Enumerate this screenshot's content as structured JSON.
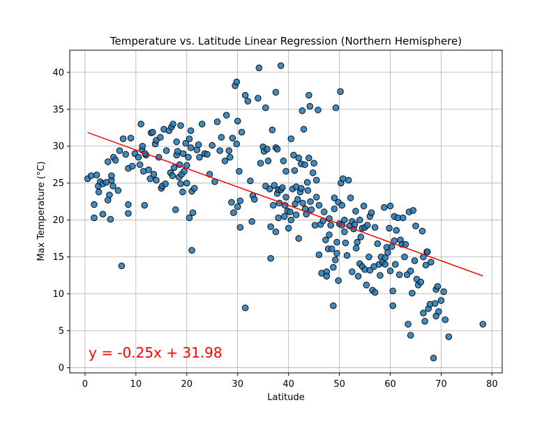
{
  "chart_data": {
    "type": "scatter",
    "title": "Temperature vs. Latitude Linear Regression (Northern Hemisphere)",
    "xlabel": "Latitude",
    "ylabel": "Max Temperature (°C)",
    "xlim": [
      -3,
      82
    ],
    "ylim": [
      -0.7,
      43
    ],
    "xticks": [
      0,
      10,
      20,
      30,
      40,
      50,
      60,
      70,
      80
    ],
    "yticks": [
      0,
      5,
      10,
      15,
      20,
      25,
      30,
      35,
      40
    ],
    "grid": true,
    "regression": {
      "slope": -0.25,
      "intercept": 31.98,
      "x_range": [
        0.5,
        78.2
      ],
      "equation": "y = -0.25x + 31.98",
      "color": "#ff0000"
    },
    "point_color": "#1f77b4",
    "points": [
      [
        0.5,
        25.6
      ],
      [
        1.2,
        26.0
      ],
      [
        1.8,
        22.1
      ],
      [
        1.8,
        20.3
      ],
      [
        2.3,
        26.1
      ],
      [
        2.6,
        24.6
      ],
      [
        2.7,
        23.8
      ],
      [
        3.0,
        25.2
      ],
      [
        3.5,
        20.8
      ],
      [
        3.5,
        24.9
      ],
      [
        4.2,
        25.1
      ],
      [
        4.5,
        22.7
      ],
      [
        4.5,
        27.9
      ],
      [
        4.8,
        23.4
      ],
      [
        5.0,
        20.1
      ],
      [
        5.2,
        25.4
      ],
      [
        5.2,
        26.0
      ],
      [
        5.5,
        24.6
      ],
      [
        5.6,
        28.5
      ],
      [
        6.0,
        28.1
      ],
      [
        6.5,
        24.0
      ],
      [
        6.8,
        29.4
      ],
      [
        7.2,
        13.8
      ],
      [
        7.5,
        31.0
      ],
      [
        8.0,
        28.9
      ],
      [
        8.5,
        22.1
      ],
      [
        8.5,
        20.9
      ],
      [
        8.5,
        27.0
      ],
      [
        9.0,
        31.1
      ],
      [
        9.3,
        27.3
      ],
      [
        9.8,
        29.0
      ],
      [
        10.5,
        28.5
      ],
      [
        10.8,
        27.5
      ],
      [
        11.0,
        33.0
      ],
      [
        11.2,
        29.5
      ],
      [
        11.3,
        30.0
      ],
      [
        11.5,
        26.6
      ],
      [
        11.7,
        22.0
      ],
      [
        12.0,
        28.8
      ],
      [
        12.5,
        26.8
      ],
      [
        12.8,
        25.6
      ],
      [
        13.0,
        31.8
      ],
      [
        13.3,
        31.9
      ],
      [
        13.5,
        26.2
      ],
      [
        13.8,
        30.3
      ],
      [
        14.0,
        30.8
      ],
      [
        14.0,
        25.4
      ],
      [
        14.5,
        28.5
      ],
      [
        14.8,
        31.2
      ],
      [
        15.0,
        24.3
      ],
      [
        15.2,
        24.6
      ],
      [
        15.5,
        32.3
      ],
      [
        15.8,
        24.9
      ],
      [
        16.0,
        29.4
      ],
      [
        16.5,
        32.1
      ],
      [
        16.8,
        26.4
      ],
      [
        17.0,
        32.6
      ],
      [
        17.2,
        26.0
      ],
      [
        17.3,
        33.0
      ],
      [
        17.5,
        27.1
      ],
      [
        17.8,
        21.4
      ],
      [
        18.0,
        28.8
      ],
      [
        18.0,
        30.6
      ],
      [
        18.2,
        29.3
      ],
      [
        18.5,
        25.8
      ],
      [
        18.6,
        27.5
      ],
      [
        18.8,
        32.8
      ],
      [
        18.8,
        24.9
      ],
      [
        19.0,
        26.2
      ],
      [
        19.2,
        23.8
      ],
      [
        19.3,
        29.0
      ],
      [
        19.5,
        26.6
      ],
      [
        19.8,
        30.4
      ],
      [
        20.0,
        27.4
      ],
      [
        20.0,
        25.0
      ],
      [
        20.3,
        28.5
      ],
      [
        20.5,
        31.0
      ],
      [
        20.5,
        20.3
      ],
      [
        20.8,
        32.1
      ],
      [
        20.8,
        29.8
      ],
      [
        21.0,
        23.9
      ],
      [
        21.0,
        15.9
      ],
      [
        21.2,
        21.0
      ],
      [
        21.5,
        24.3
      ],
      [
        22.0,
        29.5
      ],
      [
        22.3,
        30.2
      ],
      [
        22.5,
        28.5
      ],
      [
        23.0,
        33.0
      ],
      [
        23.5,
        29.0
      ],
      [
        24.0,
        28.9
      ],
      [
        24.5,
        26.2
      ],
      [
        25.0,
        30.1
      ],
      [
        25.5,
        25.2
      ],
      [
        26.0,
        33.3
      ],
      [
        26.5,
        29.4
      ],
      [
        26.8,
        31.2
      ],
      [
        27.5,
        28.0
      ],
      [
        27.8,
        34.2
      ],
      [
        28.3,
        29.4
      ],
      [
        28.5,
        28.5
      ],
      [
        28.8,
        22.4
      ],
      [
        29.0,
        31.1
      ],
      [
        29.2,
        21.0
      ],
      [
        29.5,
        38.2
      ],
      [
        29.8,
        38.7
      ],
      [
        29.8,
        30.3
      ],
      [
        30.0,
        33.4
      ],
      [
        30.0,
        21.8
      ],
      [
        30.3,
        26.6
      ],
      [
        30.5,
        22.6
      ],
      [
        30.5,
        19.0
      ],
      [
        30.8,
        31.9
      ],
      [
        31.5,
        36.9
      ],
      [
        31.5,
        8.1
      ],
      [
        32.0,
        36.1
      ],
      [
        32.5,
        25.3
      ],
      [
        32.8,
        19.8
      ],
      [
        33.0,
        23.3
      ],
      [
        33.3,
        22.8
      ],
      [
        34.0,
        36.5
      ],
      [
        34.2,
        40.6
      ],
      [
        34.5,
        27.7
      ],
      [
        35.0,
        29.9
      ],
      [
        35.2,
        29.3
      ],
      [
        35.5,
        35.2
      ],
      [
        35.5,
        24.6
      ],
      [
        35.8,
        29.6
      ],
      [
        36.0,
        28.0
      ],
      [
        36.3,
        24.2
      ],
      [
        36.5,
        19.1
      ],
      [
        36.5,
        14.8
      ],
      [
        36.8,
        32.2
      ],
      [
        37.0,
        22.0
      ],
      [
        37.2,
        24.7
      ],
      [
        37.5,
        37.3
      ],
      [
        37.5,
        29.8
      ],
      [
        37.5,
        18.4
      ],
      [
        37.8,
        29.6
      ],
      [
        37.8,
        23.6
      ],
      [
        38.0,
        24.1
      ],
      [
        38.0,
        20.3
      ],
      [
        38.2,
        22.3
      ],
      [
        38.5,
        40.9
      ],
      [
        38.5,
        24.1
      ],
      [
        38.8,
        24.4
      ],
      [
        39.0,
        28.0
      ],
      [
        39.2,
        20.5
      ],
      [
        39.3,
        22.0
      ],
      [
        39.5,
        26.6
      ],
      [
        39.5,
        23.1
      ],
      [
        39.8,
        21.2
      ],
      [
        40.0,
        18.9
      ],
      [
        40.3,
        21.1
      ],
      [
        40.5,
        20.0
      ],
      [
        40.5,
        31.0
      ],
      [
        40.8,
        24.2
      ],
      [
        41.0,
        28.8
      ],
      [
        41.2,
        26.7
      ],
      [
        41.3,
        22.2
      ],
      [
        41.5,
        24.5
      ],
      [
        41.5,
        20.7
      ],
      [
        41.8,
        22.8
      ],
      [
        42.0,
        17.5
      ],
      [
        42.0,
        28.4
      ],
      [
        42.3,
        23.8
      ],
      [
        42.5,
        27.6
      ],
      [
        42.5,
        24.3
      ],
      [
        42.7,
        34.8
      ],
      [
        42.8,
        22.3
      ],
      [
        43.0,
        32.3
      ],
      [
        43.2,
        27.5
      ],
      [
        43.3,
        21.5
      ],
      [
        43.5,
        20.8
      ],
      [
        43.7,
        25.1
      ],
      [
        43.8,
        24.0
      ],
      [
        44.0,
        28.4
      ],
      [
        44.0,
        36.9
      ],
      [
        44.2,
        35.4
      ],
      [
        44.3,
        22.5
      ],
      [
        44.5,
        21.4
      ],
      [
        44.8,
        26.4
      ],
      [
        45.0,
        27.7
      ],
      [
        45.2,
        19.3
      ],
      [
        45.5,
        25.4
      ],
      [
        45.5,
        23.1
      ],
      [
        45.8,
        34.9
      ],
      [
        46.0,
        22.0
      ],
      [
        46.0,
        15.3
      ],
      [
        46.3,
        19.4
      ],
      [
        46.5,
        12.8
      ],
      [
        46.8,
        19.9
      ],
      [
        47.0,
        21.1
      ],
      [
        47.3,
        17.3
      ],
      [
        47.5,
        13.0
      ],
      [
        47.5,
        12.4
      ],
      [
        47.8,
        16.1
      ],
      [
        48.0,
        20.2
      ],
      [
        48.0,
        18.0
      ],
      [
        48.3,
        19.3
      ],
      [
        48.5,
        16.1
      ],
      [
        48.8,
        13.6
      ],
      [
        48.8,
        8.4
      ],
      [
        49.0,
        23.0
      ],
      [
        49.0,
        21.5
      ],
      [
        49.2,
        14.6
      ],
      [
        49.3,
        35.2
      ],
      [
        49.5,
        17.0
      ],
      [
        49.5,
        15.5
      ],
      [
        49.8,
        22.4
      ],
      [
        49.8,
        11.8
      ],
      [
        50.0,
        19.5
      ],
      [
        50.2,
        37.4
      ],
      [
        50.3,
        25.0
      ],
      [
        50.5,
        22.0
      ],
      [
        50.5,
        19.3
      ],
      [
        50.7,
        25.6
      ],
      [
        51.0,
        20.0
      ],
      [
        51.0,
        18.4
      ],
      [
        51.2,
        16.9
      ],
      [
        51.5,
        15.2
      ],
      [
        51.8,
        25.4
      ],
      [
        52.0,
        19.2
      ],
      [
        52.2,
        23.0
      ],
      [
        52.5,
        19.8
      ],
      [
        52.5,
        13.0
      ],
      [
        52.8,
        18.8
      ],
      [
        53.0,
        19.4
      ],
      [
        53.2,
        21.2
      ],
      [
        53.3,
        16.2
      ],
      [
        53.5,
        17.0
      ],
      [
        53.7,
        12.4
      ],
      [
        54.0,
        20.0
      ],
      [
        54.0,
        14.1
      ],
      [
        54.2,
        17.7
      ],
      [
        54.5,
        18.9
      ],
      [
        54.5,
        13.7
      ],
      [
        54.8,
        21.9
      ],
      [
        55.0,
        19.0
      ],
      [
        55.0,
        13.3
      ],
      [
        55.3,
        11.2
      ],
      [
        55.5,
        19.3
      ],
      [
        55.8,
        15.0
      ],
      [
        56.0,
        20.5
      ],
      [
        56.0,
        13.2
      ],
      [
        56.3,
        21.0
      ],
      [
        56.5,
        10.5
      ],
      [
        56.8,
        13.7
      ],
      [
        57.0,
        19.0
      ],
      [
        57.0,
        10.2
      ],
      [
        57.5,
        16.8
      ],
      [
        57.8,
        14.0
      ],
      [
        58.0,
        12.5
      ],
      [
        58.2,
        15.0
      ],
      [
        58.5,
        14.3
      ],
      [
        58.8,
        21.7
      ],
      [
        59.0,
        14.9
      ],
      [
        59.0,
        14.0
      ],
      [
        59.3,
        16.3
      ],
      [
        59.5,
        15.6
      ],
      [
        59.8,
        18.9
      ],
      [
        60.0,
        21.9
      ],
      [
        60.0,
        13.1
      ],
      [
        60.3,
        16.4
      ],
      [
        60.5,
        10.4
      ],
      [
        60.5,
        8.4
      ],
      [
        60.8,
        20.5
      ],
      [
        60.8,
        17.2
      ],
      [
        61.0,
        14.0
      ],
      [
        61.2,
        18.6
      ],
      [
        61.5,
        20.3
      ],
      [
        61.8,
        12.6
      ],
      [
        62.0,
        17.3
      ],
      [
        62.3,
        16.7
      ],
      [
        62.5,
        20.3
      ],
      [
        62.8,
        15.0
      ],
      [
        63.0,
        16.7
      ],
      [
        63.3,
        12.6
      ],
      [
        63.5,
        5.9
      ],
      [
        63.7,
        21.1
      ],
      [
        64.0,
        4.4
      ],
      [
        64.0,
        13.1
      ],
      [
        64.3,
        10.1
      ],
      [
        64.5,
        21.3
      ],
      [
        64.8,
        14.5
      ],
      [
        65.0,
        19.2
      ],
      [
        65.2,
        12.0
      ],
      [
        65.5,
        11.2
      ],
      [
        66.0,
        11.6
      ],
      [
        66.3,
        18.5
      ],
      [
        66.5,
        15.0
      ],
      [
        66.5,
        7.4
      ],
      [
        66.8,
        6.3
      ],
      [
        67.0,
        13.9
      ],
      [
        67.2,
        15.7
      ],
      [
        67.3,
        15.7
      ],
      [
        67.5,
        8.0
      ],
      [
        67.8,
        8.6
      ],
      [
        68.0,
        14.3
      ],
      [
        68.5,
        1.3
      ],
      [
        68.8,
        8.7
      ],
      [
        69.0,
        7.0
      ],
      [
        69.0,
        10.6
      ],
      [
        69.3,
        11.0
      ],
      [
        69.5,
        7.6
      ],
      [
        70.0,
        9.1
      ],
      [
        70.5,
        10.3
      ],
      [
        70.8,
        6.5
      ],
      [
        71.5,
        4.2
      ],
      [
        78.2,
        5.9
      ],
      [
        11.8,
        29.0
      ]
    ]
  }
}
